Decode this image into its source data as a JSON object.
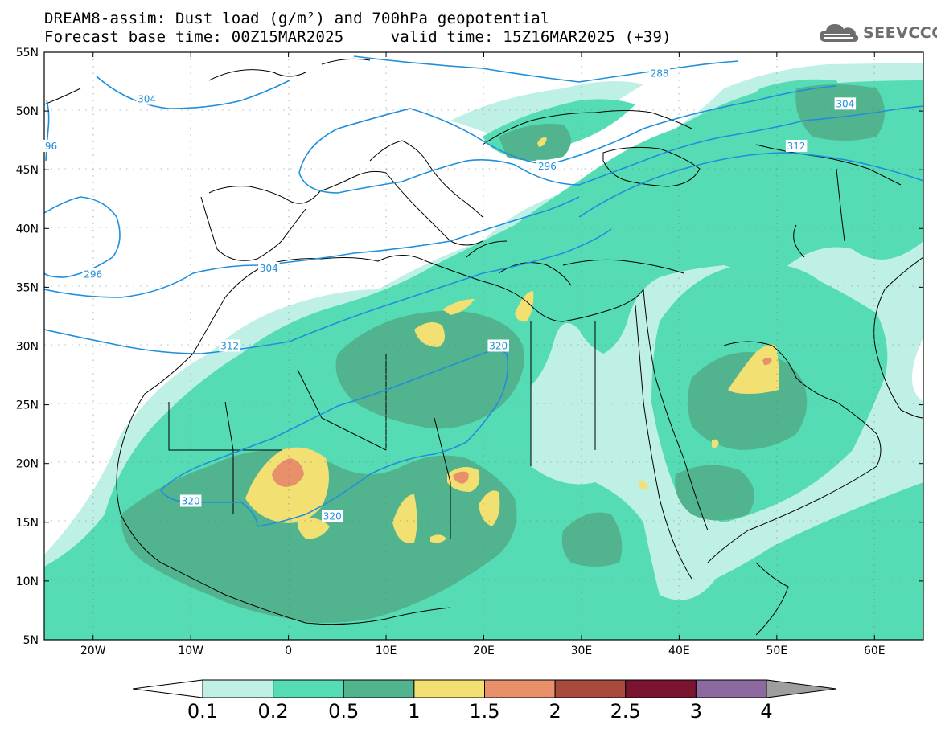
{
  "title": {
    "line1": "DREAM8-assim: Dust load (g/m²) and 700hPa geopotential",
    "line2": "Forecast base time: 00Z15MAR2025     valid time: 15Z16MAR2025 (+39)"
  },
  "logo": {
    "text": "SEEVCCC",
    "icon": "cloud-icon"
  },
  "map": {
    "lat_labels": [
      "55N",
      "50N",
      "45N",
      "40N",
      "35N",
      "30N",
      "25N",
      "20N",
      "15N",
      "10N",
      "5N"
    ],
    "lon_labels": [
      "20W",
      "10W",
      "0",
      "10E",
      "20E",
      "30E",
      "40E",
      "50E",
      "60E"
    ],
    "lon_range": [
      -25,
      65
    ],
    "lat_range": [
      5,
      55
    ],
    "contour_labels": [
      {
        "text": "304",
        "lon": -14.5,
        "lat": 51
      },
      {
        "text": "288",
        "lon": 38,
        "lat": 53.2
      },
      {
        "text": "304",
        "lon": 57,
        "lat": 50.6
      },
      {
        "text": "296",
        "lon": 26.5,
        "lat": 45.3
      },
      {
        "text": "312",
        "lon": 52,
        "lat": 47
      },
      {
        "text": "296",
        "lon": -20,
        "lat": 36.1
      },
      {
        "text": "304",
        "lon": -2,
        "lat": 36.6
      },
      {
        "text": "312",
        "lon": -6,
        "lat": 30
      },
      {
        "text": "320",
        "lon": 21.5,
        "lat": 30
      },
      {
        "text": "320",
        "lon": -10,
        "lat": 16.8
      },
      {
        "text": "320",
        "lon": 4.5,
        "lat": 15.5
      },
      {
        "text": "96",
        "lon": -24.3,
        "lat": 47
      }
    ]
  },
  "colorbar": {
    "labels": [
      "0.1",
      "0.2",
      "0.5",
      "1",
      "1.5",
      "2",
      "2.5",
      "3",
      "4"
    ],
    "colors": [
      "#ffffff",
      "#bff0e6",
      "#55dcb4",
      "#52b48e",
      "#f2e073",
      "#e8906a",
      "#a84a3c",
      "#7a1430",
      "#8c6aa0",
      "#9e9e9e"
    ]
  },
  "colors": {
    "contour": "#1f8fdc",
    "dust_01": "#bff0e6",
    "dust_02": "#55dcb4",
    "dust_05": "#52b48e",
    "dust_1": "#f2e073",
    "dust_15": "#e8906a",
    "dust_2": "#a84a3c"
  }
}
